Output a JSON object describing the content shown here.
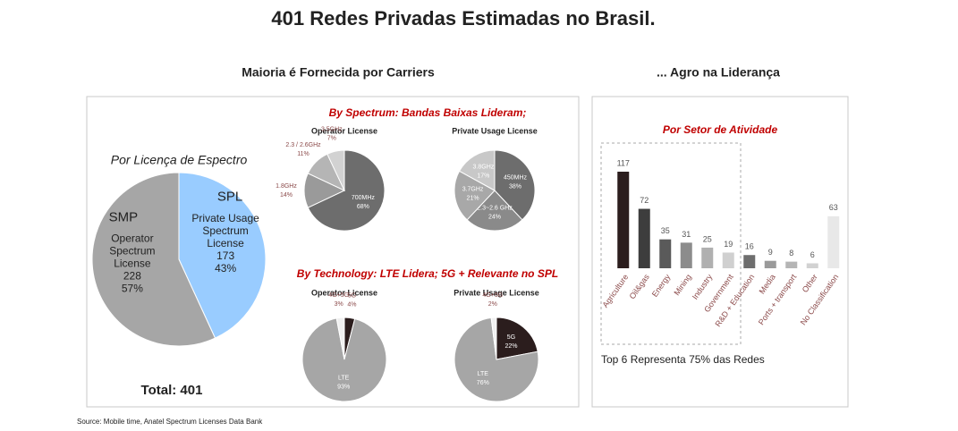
{
  "title": "401 Redes Privadas Estimadas no Brasil.",
  "headings": [
    "Maioria é Fornecida por Carriers",
    "... Agro na Liderança"
  ],
  "sections": [
    "By Spectrum: Bandas Baixas Lideram;",
    "By Technology: LTE Lidera;  5G + Relevante no SPL"
  ],
  "source": "Source: Mobile time, Anatel Spectrum Licenses Data Bank",
  "chart_data": [
    {
      "type": "pie",
      "title": "Por Licença de Espectro",
      "categories": [
        "SPL",
        "SMP"
      ],
      "descriptions": [
        [
          "Private Usage",
          "Spectrum",
          "License"
        ],
        [
          "Operator",
          "Spectrum",
          "License"
        ]
      ],
      "values": [
        173,
        228
      ],
      "value_labels": [
        "43%",
        "57%"
      ],
      "colors": [
        "#99ccff",
        "#a6a6a6"
      ],
      "total_label": "Total: 401"
    },
    {
      "type": "pie",
      "title": "Operator License",
      "categories": [
        "700MHz",
        "1.8GHz",
        "2.3 / 2.6GHz",
        "3.5GHz"
      ],
      "values": [
        68,
        14,
        11,
        7
      ],
      "value_labels": [
        "68%",
        "14%",
        "11%",
        "7%"
      ],
      "colors": [
        "#6d6d6d",
        "#9a9a9a",
        "#b5b5b5",
        "#d2d2d2"
      ]
    },
    {
      "type": "pie",
      "title": "Private Usage License",
      "categories": [
        "450MHz",
        "2.3~2.6 GHz",
        "3.7GHz",
        "3.8GHz"
      ],
      "values": [
        38,
        24,
        21,
        17
      ],
      "value_labels": [
        "38%",
        "24%",
        "21%",
        "17%"
      ],
      "colors": [
        "#6d6d6d",
        "#8a8a8a",
        "#a8a8a8",
        "#c8c8c8"
      ]
    },
    {
      "type": "pie",
      "title": "Operator License",
      "categories": [
        "5G",
        "LTE",
        "4G+5G"
      ],
      "values": [
        4,
        93,
        3
      ],
      "value_labels": [
        "4%",
        "93%",
        "3%"
      ],
      "colors": [
        "#2b1d1d",
        "#a6a6a6",
        "#f0f0f0"
      ]
    },
    {
      "type": "pie",
      "title": "Private Usage License",
      "categories": [
        "5G",
        "LTE",
        "4G+5G"
      ],
      "values": [
        22,
        76,
        2
      ],
      "value_labels": [
        "22%",
        "76%",
        "2%"
      ],
      "colors": [
        "#2b1d1d",
        "#a6a6a6",
        "#f0f0f0"
      ]
    },
    {
      "type": "bar",
      "title": "Por Setor de Atividade",
      "categories": [
        "Agriculture",
        "Oil&gas",
        "Energy",
        "Mining",
        "Industry",
        "Government",
        "R&D + Education",
        "Media",
        "Ports + transport",
        "Other",
        "No Classification"
      ],
      "values": [
        117,
        72,
        35,
        31,
        25,
        19,
        16,
        9,
        8,
        6,
        63
      ],
      "colors": [
        "#2b1d1d",
        "#3d3d3d",
        "#5a5a5a",
        "#8c8c8c",
        "#b0b0b0",
        "#d0d0d0",
        "#6e6e6e",
        "#9a9a9a",
        "#b5b5b5",
        "#d2d2d2",
        "#e8e8e8"
      ],
      "note": "Top 6 Representa 75% das Redes"
    }
  ]
}
